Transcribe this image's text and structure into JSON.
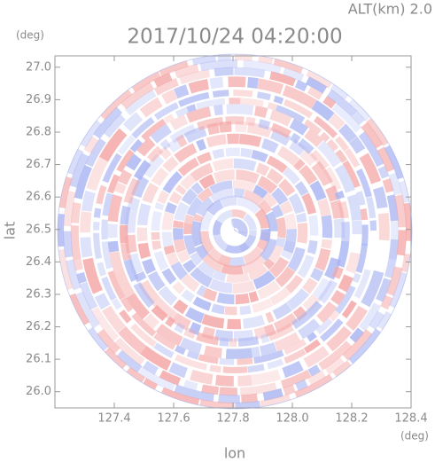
{
  "chart_data": {
    "type": "radar-ppi",
    "title": "2017/10/24 04:20:00",
    "subtitle": "ALT(km) 2.0",
    "x_label": "lon",
    "y_label": "lat",
    "x_unit": "(deg)",
    "y_unit": "(deg)",
    "xlim": [
      127.2,
      128.4
    ],
    "ylim": [
      25.95,
      27.035
    ],
    "xticks": [
      127.4,
      127.6,
      127.8,
      {
        "value": 128.0,
        "label": "128.0"
      },
      128.2,
      128.4
    ],
    "yticks": [
      {
        "value": 26.0,
        "label": "26.0"
      },
      26.1,
      26.2,
      26.3,
      26.4,
      26.5,
      26.6,
      26.7,
      26.8,
      26.9,
      {
        "value": 27.0,
        "label": "27.0"
      }
    ],
    "colors": [
      "#f4a6a6",
      "#a9b4f2"
    ]
  }
}
